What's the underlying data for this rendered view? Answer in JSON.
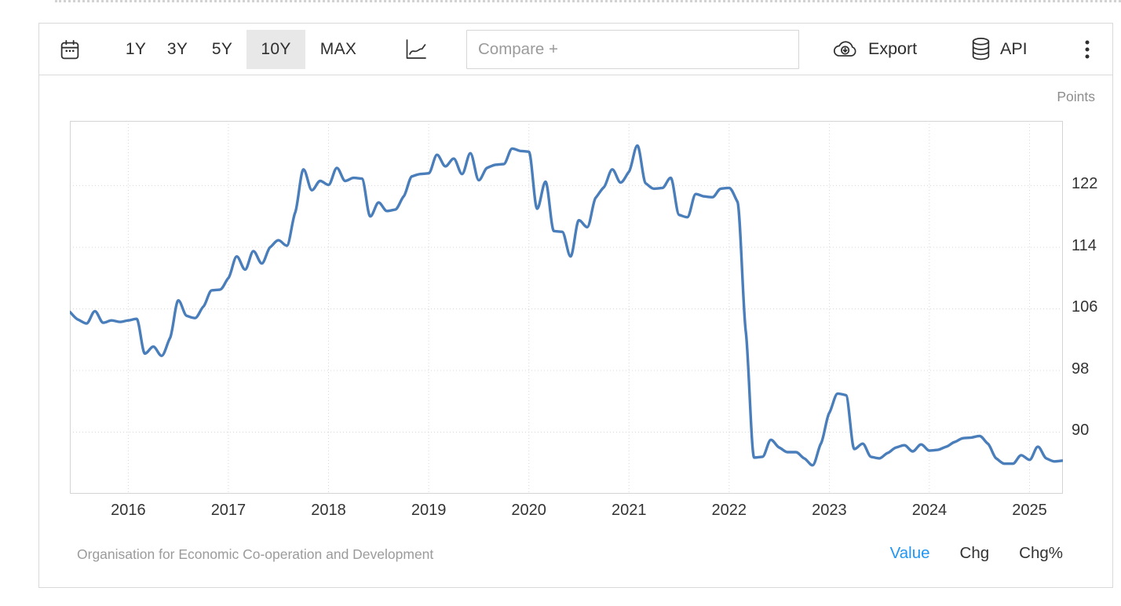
{
  "toolbar": {
    "ranges": [
      {
        "label": "1Y",
        "selected": false
      },
      {
        "label": "3Y",
        "selected": false
      },
      {
        "label": "5Y",
        "selected": false
      },
      {
        "label": "10Y",
        "selected": true
      },
      {
        "label": "MAX",
        "selected": false
      }
    ],
    "compare_placeholder": "Compare +",
    "export_label": "Export",
    "api_label": "API",
    "icons": {
      "calendar": "calendar-icon",
      "chart_type": "line-chart-icon",
      "export": "cloud-download-icon",
      "api": "database-icon",
      "more": "kebab-menu-icon"
    }
  },
  "chart": {
    "unit_label": "Points"
  },
  "footer": {
    "source": "Organisation for Economic Co-operation and Development",
    "modes": [
      {
        "label": "Value",
        "active": true
      },
      {
        "label": "Chg",
        "active": false
      },
      {
        "label": "Chg%",
        "active": false
      }
    ]
  },
  "colors": {
    "line": "#4a7ebb",
    "active_mode": "#2196f3",
    "selected_range_bg": "#e8e8e8",
    "grid": "#d7d7d7",
    "muted_text": "#9b9b9b"
  },
  "chart_data": {
    "type": "line",
    "title": "",
    "xlabel": "",
    "ylabel": "Points",
    "legend_position": "none",
    "grid": "dotted",
    "line_color": "#4a7ebb",
    "xticks": [
      2016,
      2017,
      2018,
      2019,
      2020,
      2021,
      2022,
      2023,
      2024,
      2025
    ],
    "yticks": [
      122,
      114,
      106,
      98,
      90
    ],
    "xlim": [
      2015.417,
      2025.333
    ],
    "ylim": [
      82.0,
      130.4
    ],
    "months": [
      "2015-06",
      "2015-07",
      "2015-08",
      "2015-09",
      "2015-10",
      "2015-11",
      "2015-12",
      "2016-01",
      "2016-02",
      "2016-03",
      "2016-04",
      "2016-05",
      "2016-06",
      "2016-07",
      "2016-08",
      "2016-09",
      "2016-10",
      "2016-11",
      "2016-12",
      "2017-01",
      "2017-02",
      "2017-03",
      "2017-04",
      "2017-05",
      "2017-06",
      "2017-07",
      "2017-08",
      "2017-09",
      "2017-10",
      "2017-11",
      "2017-12",
      "2018-01",
      "2018-02",
      "2018-03",
      "2018-04",
      "2018-05",
      "2018-06",
      "2018-07",
      "2018-08",
      "2018-09",
      "2018-10",
      "2018-11",
      "2018-12",
      "2019-01",
      "2019-02",
      "2019-03",
      "2019-04",
      "2019-05",
      "2019-06",
      "2019-07",
      "2019-08",
      "2019-09",
      "2019-10",
      "2019-11",
      "2019-12",
      "2020-01",
      "2020-02",
      "2020-03",
      "2020-04",
      "2020-05",
      "2020-06",
      "2020-07",
      "2020-08",
      "2020-09",
      "2020-10",
      "2020-11",
      "2020-12",
      "2021-01",
      "2021-02",
      "2021-03",
      "2021-04",
      "2021-05",
      "2021-06",
      "2021-07",
      "2021-08",
      "2021-09",
      "2021-10",
      "2021-11",
      "2021-12",
      "2022-01",
      "2022-02",
      "2022-03",
      "2022-04",
      "2022-05",
      "2022-06",
      "2022-07",
      "2022-08",
      "2022-09",
      "2022-10",
      "2022-11",
      "2022-12",
      "2023-01",
      "2023-02",
      "2023-03",
      "2023-04",
      "2023-05",
      "2023-06",
      "2023-07",
      "2023-08",
      "2023-09",
      "2023-10",
      "2023-11",
      "2023-12",
      "2024-01",
      "2024-02",
      "2024-03",
      "2024-04",
      "2024-05",
      "2024-06",
      "2024-07",
      "2024-08",
      "2024-09",
      "2024-10",
      "2024-11",
      "2024-12",
      "2025-01",
      "2025-02",
      "2025-03",
      "2025-04",
      "2025-05"
    ],
    "values": [
      105.6,
      104.6,
      104.1,
      105.7,
      104.2,
      104.5,
      104.3,
      104.5,
      104.7,
      100.2,
      101.1,
      99.9,
      102.2,
      107.1,
      105.1,
      104.8,
      106.3,
      108.4,
      108.5,
      110.0,
      112.8,
      111.1,
      113.5,
      111.9,
      114.0,
      114.9,
      114.2,
      118.5,
      124.1,
      121.4,
      122.6,
      122.1,
      124.3,
      122.6,
      123.0,
      122.9,
      118.0,
      119.8,
      118.7,
      118.9,
      120.6,
      123.2,
      123.5,
      123.6,
      126.0,
      124.5,
      125.5,
      123.5,
      126.2,
      122.7,
      124.3,
      124.7,
      124.8,
      126.8,
      126.5,
      126.4,
      119.0,
      122.5,
      116.1,
      116.0,
      112.8,
      117.5,
      116.6,
      120.4,
      121.8,
      124.1,
      122.4,
      123.8,
      127.2,
      122.3,
      121.6,
      121.7,
      123.0,
      118.2,
      117.9,
      120.9,
      120.6,
      120.5,
      121.6,
      121.7,
      119.9,
      103.0,
      86.7,
      86.8,
      89.0,
      88.0,
      87.4,
      87.4,
      86.6,
      85.7,
      88.5,
      92.5,
      95.0,
      94.8,
      87.8,
      88.5,
      86.8,
      86.6,
      87.3,
      88.0,
      88.3,
      87.5,
      88.4,
      87.6,
      87.7,
      88.1,
      88.7,
      89.2,
      89.3,
      89.5,
      88.5,
      86.6,
      85.9,
      85.9,
      87.0,
      86.4,
      88.1,
      86.6,
      86.2,
      86.3
    ]
  }
}
